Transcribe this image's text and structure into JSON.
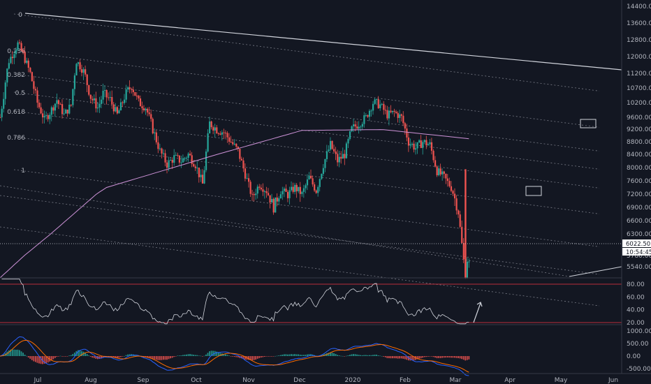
{
  "colors": {
    "background": "#131722",
    "up": "#26a69a",
    "down": "#ef5350",
    "grid": "#363a45",
    "text": "#b2b5be",
    "trendline": "#d1d4dc",
    "channel": "#787b86",
    "ma": "#ce93d8",
    "rsi": "#d1d4dc",
    "rsi_band": "#f23645",
    "macd_line": "#2962ff",
    "signal_line": "#ff6d00",
    "label_bg": "#ffffff",
    "label_text": "#131722"
  },
  "fib_labels": [
    "0",
    "0.236",
    "0.382",
    "0.5",
    "0.618",
    "0.786",
    "1"
  ],
  "price_axis": {
    "ticks": [
      "14400.00",
      "13600.00",
      "12800.00",
      "12000.00",
      "11200.00",
      "10700.00",
      "10200.00",
      "9600.00",
      "9200.00",
      "8800.00",
      "8400.00",
      "8000.00",
      "7600.00",
      "7200.00",
      "6900.00",
      "6600.00",
      "6300.00",
      "5780.00",
      "5540.00"
    ],
    "current_price_label": "6022.50",
    "countdown_label": "10:54:45"
  },
  "rsi_axis": {
    "ticks": [
      "80.00",
      "60.00",
      "40.00",
      "20.00"
    ]
  },
  "macd_axis": {
    "ticks": [
      "1000.00",
      "500.00",
      "0.00",
      "-500.00"
    ]
  },
  "time_axis": {
    "ticks": [
      "Jul",
      "Aug",
      "Sep",
      "Oct",
      "Nov",
      "Dec",
      "2020",
      "Feb",
      "Mar",
      "Apr",
      "May",
      "Jun"
    ]
  },
  "chart_data": [
    {
      "type": "candlestick",
      "description_source": "BTC-style daily price with fib channel, drawn",
      "x_range": [
        "2019-06-20",
        "2020-06-05"
      ],
      "ylim": [
        5300,
        14700
      ],
      "price_path_days": [
        0,
        5,
        10,
        13,
        17,
        21,
        25,
        28,
        32,
        36,
        40,
        43,
        47,
        51,
        55,
        58,
        62,
        66,
        70,
        74,
        78,
        82,
        86,
        90,
        94,
        98,
        102,
        106,
        110,
        114,
        118,
        122,
        126,
        130,
        134,
        138,
        142,
        146,
        150,
        154,
        158,
        162,
        166,
        170,
        174,
        178,
        182,
        186,
        190,
        194,
        198,
        202,
        206,
        210,
        214,
        218,
        222,
        226,
        230,
        234,
        238,
        242,
        246,
        250,
        254,
        258,
        262,
        264
      ],
      "price_path_close": [
        9600,
        11800,
        12600,
        12100,
        11200,
        10200,
        9500,
        9800,
        10300,
        9700,
        10100,
        11800,
        11300,
        10400,
        10000,
        10500,
        10300,
        9700,
        10400,
        10800,
        10200,
        10000,
        9200,
        8500,
        8100,
        8300,
        8200,
        8400,
        8100,
        7500,
        9400,
        9200,
        9100,
        8800,
        8500,
        7800,
        7100,
        7500,
        7300,
        6900,
        7300,
        7200,
        7400,
        7200,
        7700,
        7300,
        8100,
        8700,
        8200,
        8400,
        9200,
        9400,
        9600,
        10200,
        10100,
        9700,
        9800,
        9600,
        8800,
        8600,
        8800,
        8700,
        7900,
        7700,
        7400,
        6800,
        5300,
        5600
      ],
      "ma_description": "long moving average curve",
      "annotations": [
        "0",
        "0.236",
        "0.382",
        "0.5",
        "0.618",
        "0.786",
        "1"
      ]
    },
    {
      "type": "line",
      "name": "RSI",
      "ylim": [
        15,
        90
      ],
      "levels": [
        80,
        20
      ]
    },
    {
      "type": "bar",
      "name": "MACD",
      "ylim": [
        -700,
        1100
      ]
    }
  ]
}
